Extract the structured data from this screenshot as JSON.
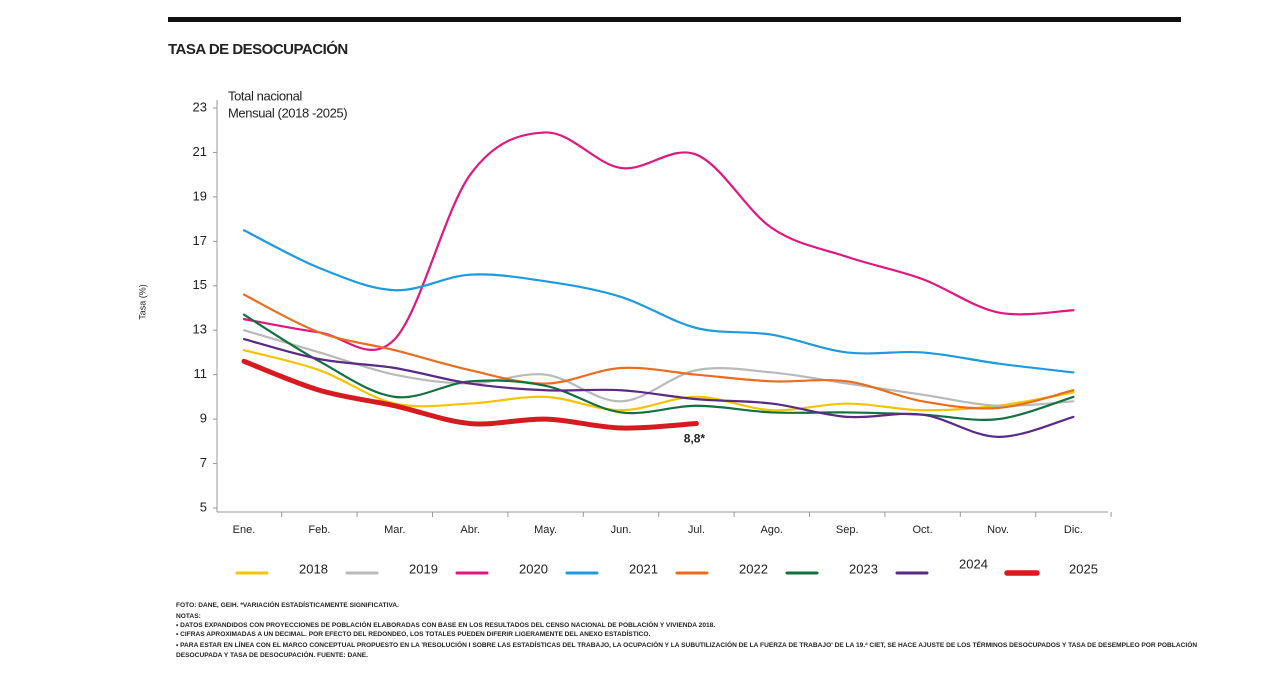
{
  "chart_data": {
    "type": "line",
    "title": "TASA DE DESOCUPACIÓN",
    "subtitle": [
      "Total nacional",
      "Mensual (2018 -2025)"
    ],
    "y_label": "Tasa (%)",
    "categories": [
      "Ene.",
      "Feb.",
      "Mar.",
      "Abr.",
      "May.",
      "Jun.",
      "Jul.",
      "Ago.",
      "Sep.",
      "Oct.",
      "Nov.",
      "Dic."
    ],
    "ylim": [
      5,
      23
    ],
    "yticks": [
      5,
      7,
      9,
      11,
      13,
      15,
      17,
      19,
      21,
      23
    ],
    "series": [
      {
        "name": "2018",
        "color": "#f5c400",
        "values": [
          12.1,
          11.2,
          9.7,
          9.7,
          10.0,
          9.4,
          10.0,
          9.4,
          9.7,
          9.4,
          9.6,
          10.2
        ]
      },
      {
        "name": "2019",
        "color": "#b9b9b9",
        "values": [
          13.0,
          12.0,
          11.0,
          10.6,
          11.0,
          9.8,
          11.2,
          11.1,
          10.6,
          10.1,
          9.6,
          9.8
        ]
      },
      {
        "name": "2020",
        "color": "#e0177f",
        "values": [
          13.5,
          12.9,
          12.6,
          20.0,
          21.9,
          20.3,
          20.9,
          17.6,
          16.3,
          15.3,
          13.8,
          13.9
        ]
      },
      {
        "name": "2021",
        "color": "#1e9ade",
        "values": [
          17.5,
          15.8,
          14.8,
          15.5,
          15.2,
          14.5,
          13.1,
          12.8,
          12.0,
          12.0,
          11.5,
          11.1
        ]
      },
      {
        "name": "2022",
        "color": "#ea6d1f",
        "values": [
          14.6,
          12.9,
          12.1,
          11.2,
          10.6,
          11.3,
          11.0,
          10.7,
          10.7,
          9.8,
          9.5,
          10.3
        ]
      },
      {
        "name": "2023",
        "color": "#13703f",
        "values": [
          13.7,
          11.6,
          10.0,
          10.7,
          10.5,
          9.3,
          9.6,
          9.3,
          9.3,
          9.2,
          9.0,
          10.0
        ]
      },
      {
        "name": "2024",
        "color": "#5b2a86",
        "values": [
          12.6,
          11.7,
          11.3,
          10.6,
          10.3,
          10.3,
          9.9,
          9.7,
          9.1,
          9.2,
          8.2,
          9.1
        ]
      },
      {
        "name": "2025",
        "color": "#d71920",
        "width": 5,
        "values": [
          11.6,
          10.3,
          9.6,
          8.8,
          9.0,
          8.6,
          8.8,
          null,
          null,
          null,
          null,
          null
        ],
        "value_labels": [
          null,
          null,
          null,
          null,
          null,
          null,
          "8,8*",
          null,
          null,
          null,
          null,
          null
        ]
      }
    ],
    "footnotes": [
      "FOTO: DANE, GEIH. *VARIACIÓN ESTADÍSTICAMENTE SIGNIFICATIVA.",
      "NOTAS:",
      "• DATOS EXPANDIDOS CON PROYECCIONES DE POBLACIÓN ELABORADAS CON BASE EN LOS RESULTADOS DEL CENSO NACIONAL DE POBLACIÓN Y VIVIENDA 2018.",
      "• CIFRAS APROXIMADAS A UN DECIMAL. POR EFECTO DEL REDONDEO, LOS TOTALES PUEDEN DIFERIR LIGERAMENTE DEL ANEXO ESTADÍSTICO.",
      "• PARA ESTAR EN LÍNEA CON EL MARCO CONCEPTUAL PROPUESTO EN LA 'RESOLUCIÓN I SOBRE LAS ESTADÍSTICAS DEL TRABAJO, LA OCUPACIÓN Y LA SUBUTILIZACIÓN DE LA FUERZA DE TRABAJO' DE LA 19.ª CIET, SE HACE AJUSTE DE LOS TÉRMINOS DESOCUPADOS Y TASA DE DESEMPLEO POR POBLACIÓN",
      "DESOCUPADA Y TASA DE DESOCUPACIÓN. FUENTE: DANE."
    ]
  }
}
